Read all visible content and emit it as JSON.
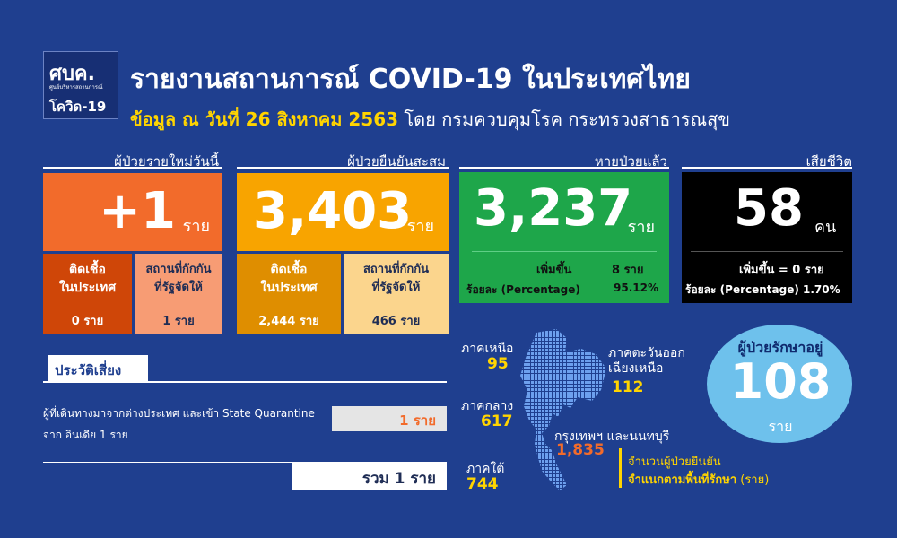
{
  "logo": {
    "text": "ศบค.",
    "subtitle": "ศูนย์บริหารสถานการณ์",
    "bottom": "โควิด-19",
    "tag": "ศูนย์บริหารสถานการณ์แพร่ระบาดของโรคติดเชื้อไวรัสโคโรนา 2019"
  },
  "header": {
    "title": "รายงานสถานการณ์ COVID-19 ในประเทศไทย",
    "subtitle_bold": "ข้อมูล ณ วันที่ 26 สิงหาคม 2563",
    "subtitle_rest": " โดย กรมควบคุมโรค กระทรวงสาธารณสุข"
  },
  "new_cases": {
    "label": "ผู้ป่วยรายใหม่วันนี้",
    "value": "+1",
    "unit": "ราย",
    "left_title": "ติดเชื้อ\nในประเทศ",
    "left_value": "0 ราย",
    "right_title": "สถานที่กักกัน\nที่รัฐจัดให้",
    "right_value": "1 ราย"
  },
  "cumulative": {
    "label": "ผู้ป่วยยืนยันสะสม",
    "value": "3,403",
    "unit": "ราย",
    "left_title": "ติดเชื้อ\nในประเทศ",
    "left_value": "2,444 ราย",
    "right_title": "สถานที่กักกัน\nที่รัฐจัดให้",
    "right_value": "466 ราย"
  },
  "recovered": {
    "label": "หายป่วยแล้ว",
    "value": "3,237",
    "unit": "ราย",
    "increase_label": "เพิ่มขึ้น",
    "increase_value": "8 ราย",
    "pct_label": "ร้อยละ (Percentage)",
    "pct_value": "95.12%"
  },
  "deaths": {
    "label": "เสียชีวิต",
    "value": "58",
    "unit": "คน",
    "increase": "เพิ่มขึ้น = 0 ราย",
    "pct": "ร้อยละ (Percentage) 1.70%"
  },
  "risk": {
    "title": "ประวัติเสี่ยง",
    "line1": "ผู้ที่เดินทางมาจากต่างประเทศ และเข้า State Quarantine",
    "line2": "จาก อินเดีย 1 ราย",
    "value": "1 ราย",
    "total": "รวม 1 ราย"
  },
  "regions": {
    "north_label": "ภาคเหนือ",
    "north_value": "95",
    "central_label": "ภาคกลาง",
    "central_value": "617",
    "south_label": "ภาคใต้",
    "south_value": "744",
    "northeast_label": "ภาคตะวันออก\nเฉียงเหนือ",
    "northeast_value": "112",
    "bkk_label": "กรุงเทพฯ และนนทบุรี",
    "bkk_value": "1,835",
    "note_line1": "จำนวนผู้ป่วยยืนยัน",
    "note_line2": "จำแนกตามพื้นที่รักษา",
    "note_unit": " (ราย)"
  },
  "treatment": {
    "label": "ผู้ป่วยรักษาอยู่",
    "value": "108",
    "unit": "ราย"
  },
  "colors": {
    "bg": "#1f3f8f",
    "orange": "#f26b2b",
    "dark_orange": "#cf4608",
    "light_orange": "#f79c74",
    "yellow": "#f8a400",
    "dark_yellow": "#df8e00",
    "light_yellow": "#fbd58d",
    "green": "#1ea64a",
    "black": "#000000",
    "blue_circle": "#6ec1ec"
  }
}
